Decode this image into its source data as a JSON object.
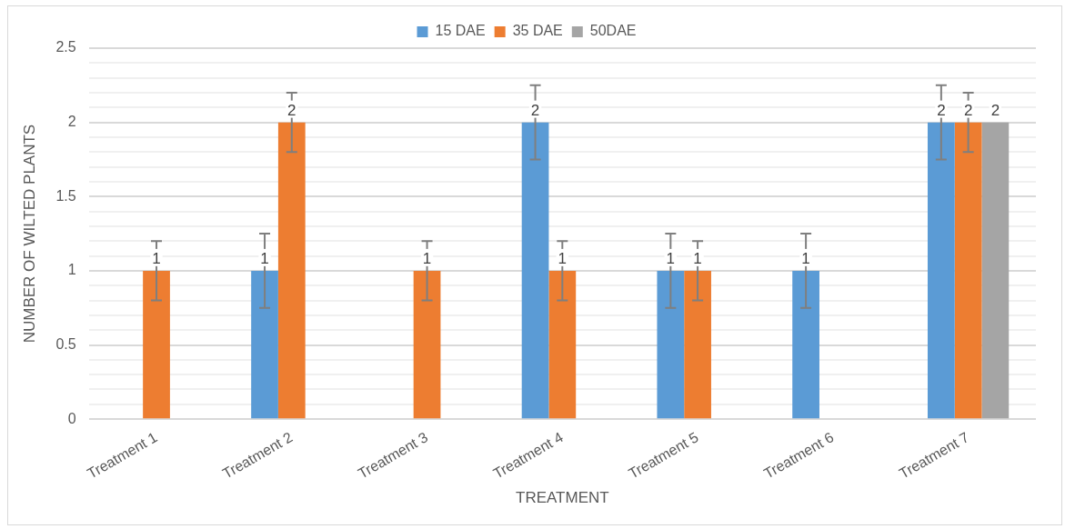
{
  "chart_data": {
    "type": "bar",
    "xlabel": "TREATMENT",
    "ylabel": "NUMBER OF WILTED PLANTS",
    "categories": [
      "Treatment 1",
      "Treatment 2",
      "Treatment 3",
      "Treatment 4",
      "Treatment 5",
      "Treatment 6",
      "Treatment 7"
    ],
    "series": [
      {
        "name": "15 DAE",
        "color": "#5b9bd5",
        "values": [
          null,
          1,
          null,
          2,
          1,
          1,
          2
        ],
        "errors": [
          null,
          0.25,
          null,
          0.25,
          0.25,
          0.25,
          0.25
        ]
      },
      {
        "name": "35 DAE",
        "color": "#ed7d31",
        "values": [
          1,
          2,
          1,
          1,
          1,
          null,
          2
        ],
        "errors": [
          0.2,
          0.2,
          0.2,
          0.2,
          0.2,
          null,
          0.2
        ]
      },
      {
        "name": "50DAE",
        "color": "#a5a5a5",
        "values": [
          null,
          null,
          null,
          null,
          null,
          null,
          2
        ]
      }
    ],
    "ylim": [
      0,
      2.5
    ],
    "yticks": [
      0,
      {
        "value": 0.1,
        "label": null
      },
      {
        "value": 0.2,
        "label": null
      },
      {
        "value": 0.3,
        "label": null
      },
      {
        "value": 0.4,
        "label": null
      },
      0.5,
      {
        "value": 0.6,
        "label": null
      },
      {
        "value": 0.7,
        "label": null
      },
      {
        "value": 0.8,
        "label": null
      },
      {
        "value": 0.9,
        "label": null
      },
      1,
      {
        "value": 1.1,
        "label": null
      },
      {
        "value": 1.2,
        "label": null
      },
      {
        "value": 1.3,
        "label": null
      },
      {
        "value": 1.4,
        "label": null
      },
      1.5,
      {
        "value": 1.6,
        "label": null
      },
      {
        "value": 1.7,
        "label": null
      },
      {
        "value": 1.8,
        "label": null
      },
      {
        "value": 1.9,
        "label": null
      },
      2,
      {
        "value": 2.1,
        "label": null
      },
      {
        "value": 2.2,
        "label": null
      },
      {
        "value": 2.3,
        "label": null
      },
      {
        "value": 2.4,
        "label": null
      },
      2.5
    ],
    "grid": "y",
    "legend": "top",
    "data_labels": true
  }
}
